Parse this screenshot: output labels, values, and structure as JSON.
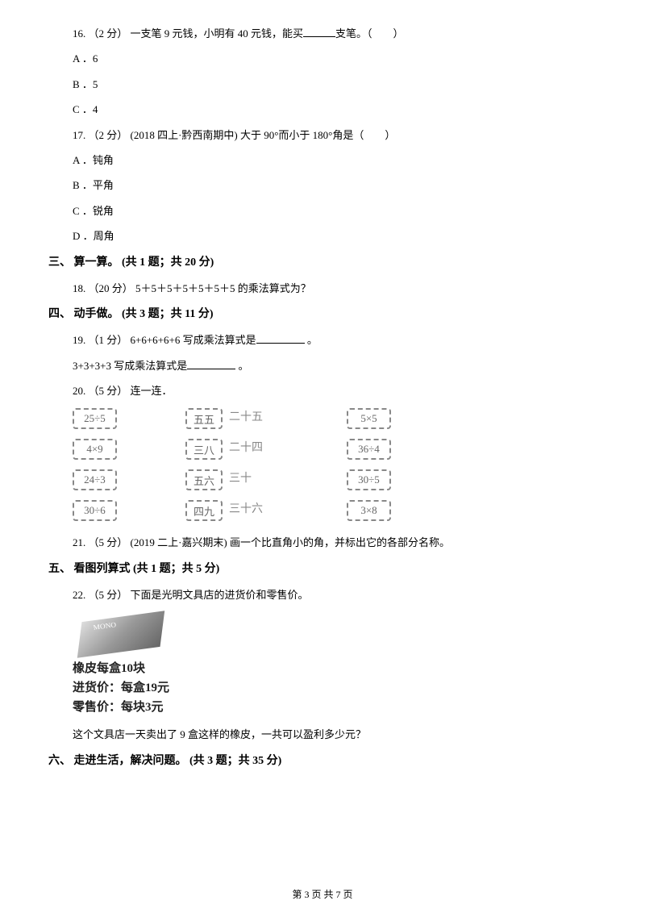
{
  "q16": {
    "stem": "16.  （2 分）  一支笔 9 元钱，小明有 40 元钱，能买",
    "stem_end": "支笔。（　　）",
    "options": {
      "a": "A ．6",
      "b": "B ．5",
      "c": "C ．4"
    }
  },
  "q17": {
    "stem": "17.  （2 分）  (2018 四上·黔西南期中) 大于 90°而小于 180°角是（　　）",
    "options": {
      "a": "A ．钝角",
      "b": "B ．平角",
      "c": "C ．锐角",
      "d": "D ．周角"
    }
  },
  "section3": {
    "header": "三、 算一算。  (共 1 题；共 20 分)"
  },
  "q18": {
    "stem": "18.  （20 分）  5＋5＋5＋5＋5＋5＋5 的乘法算式为？"
  },
  "section4": {
    "header": "四、 动手做。  (共 3 题；共 11 分)"
  },
  "q19": {
    "stem": "19.  （1 分）  6+6+6+6+6 写成乘法算式是",
    "stem_end": " 。",
    "line2_start": "3+3+3+3 写成乘法算式是",
    "line2_end": " 。"
  },
  "q20": {
    "stem": "20.  （5 分）  连一连．",
    "matching": {
      "rows": [
        {
          "left": "25÷5",
          "mid1": "五五",
          "mid_text": "二十五",
          "right": "5×5"
        },
        {
          "left": "4×9",
          "mid1": "三八",
          "mid_text": "二十四",
          "right": "36÷4"
        },
        {
          "left": "24÷3",
          "mid1": "五六",
          "mid_text": "三十",
          "right": "30÷5"
        },
        {
          "left": "30÷6",
          "mid1": "四九",
          "mid_text": "三十六",
          "right": "3×8"
        }
      ],
      "box_border_color": "#888888",
      "text_color": "#888888"
    }
  },
  "q21": {
    "stem": "21.  （5 分）  (2019 二上·嘉兴期末) 画一个比直角小的角，并标出它的各部分名称。"
  },
  "section5": {
    "header": "五、 看图列算式  (共 1 题；共 5 分)"
  },
  "q22": {
    "stem": "22.  （5 分）  下面是光明文具店的进货价和零售价。",
    "product": {
      "line1": "橡皮每盒10块",
      "line2": "进货价：每盒19元",
      "line3": "零售价：每块3元"
    },
    "question": "这个文具店一天卖出了 9 盒这样的橡皮，一共可以盈利多少元？"
  },
  "section6": {
    "header": "六、 走进生活，解决问题。  (共 3 题；共 35 分)"
  },
  "footer": {
    "text": "第 3 页 共 7 页"
  },
  "colors": {
    "background": "#ffffff",
    "text": "#000000",
    "faded": "#888888"
  },
  "fonts": {
    "body_size": 13,
    "header_size": 14,
    "product_size": 15
  }
}
